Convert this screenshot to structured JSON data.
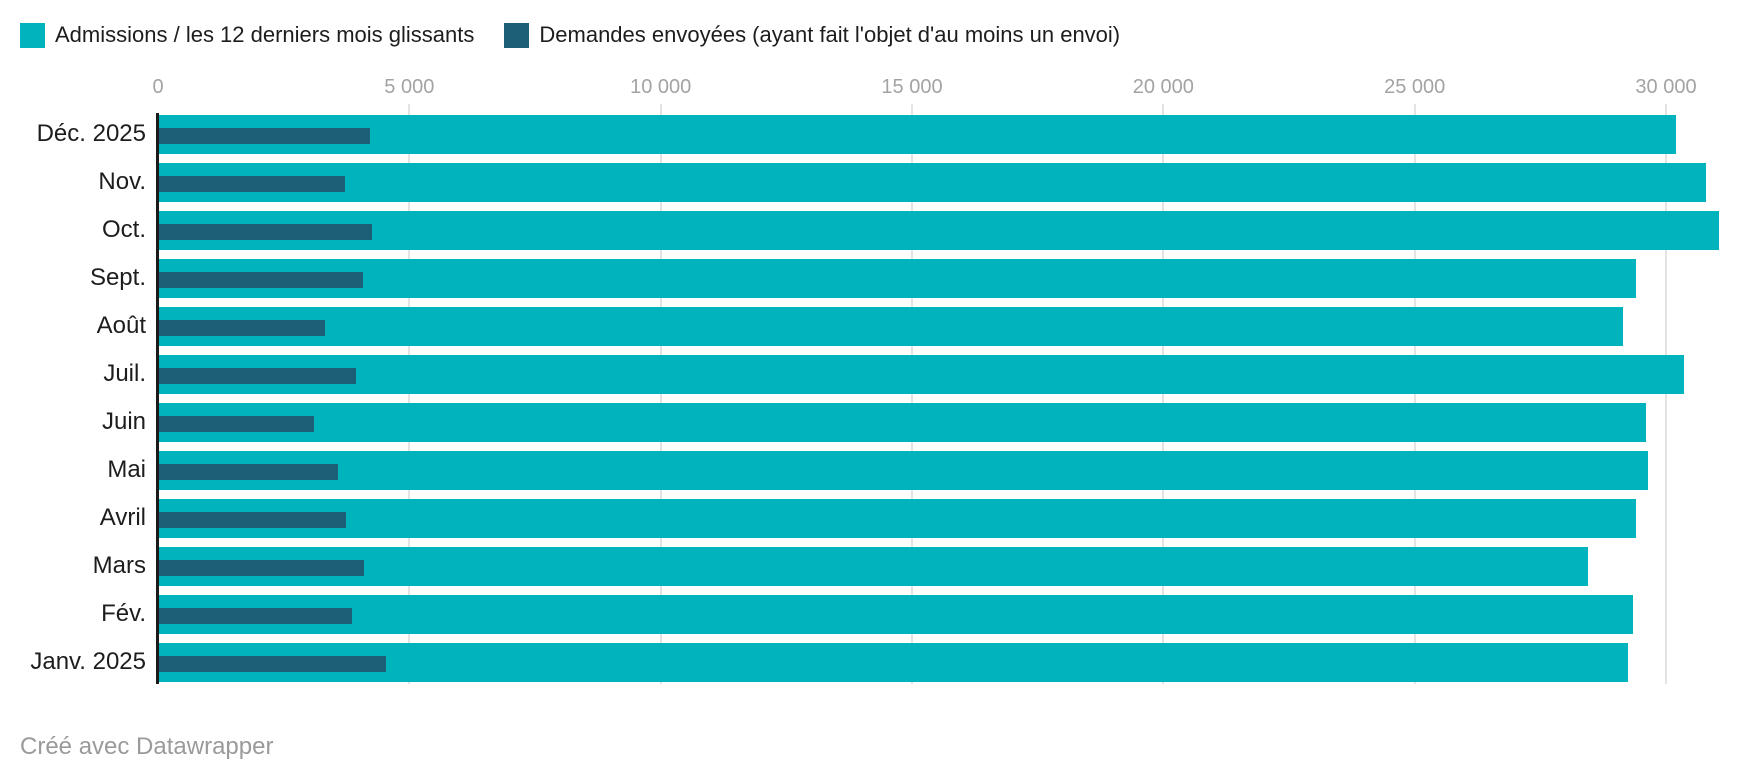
{
  "chart_data": {
    "type": "bar",
    "orientation": "horizontal",
    "categories": [
      "Déc. 2025",
      "Nov.",
      "Oct.",
      "Sept.",
      "Août",
      "Juil.",
      "Juin",
      "Mai",
      "Avril",
      "Mars",
      "Fév.",
      "Janv. 2025"
    ],
    "series": [
      {
        "name": "Admissions / les 12 derniers mois glissants",
        "color": "#00b3bd",
        "values": [
          30200,
          30800,
          31050,
          29400,
          29150,
          30350,
          29600,
          29650,
          29400,
          28450,
          29350,
          29250
        ]
      },
      {
        "name": "Demandes envoyées (ayant fait l'objet d'au moins un envoi)",
        "color": "#1d5f76",
        "values": [
          4220,
          3730,
          4260,
          4080,
          3320,
          3940,
          3100,
          3580,
          3740,
          4090,
          3860,
          4530
        ]
      }
    ],
    "x_ticks": [
      {
        "value": 0,
        "label": "0"
      },
      {
        "value": 5000,
        "label": "5 000"
      },
      {
        "value": 10000,
        "label": "10 000"
      },
      {
        "value": 15000,
        "label": "15 000"
      },
      {
        "value": 20000,
        "label": "20 000"
      },
      {
        "value": 25000,
        "label": "25 000"
      },
      {
        "value": 30000,
        "label": "30 000"
      }
    ],
    "xlim": [
      0,
      30000
    ],
    "grid": "vertical",
    "legend_position": "top-left",
    "axis_line_color": "#1a1a1a",
    "gridline_color": "#e3e3e3",
    "tick_label_color": "#a3a3a3",
    "category_label_color": "#1d1d1d"
  },
  "footer": {
    "credit": "Créé avec Datawrapper"
  }
}
